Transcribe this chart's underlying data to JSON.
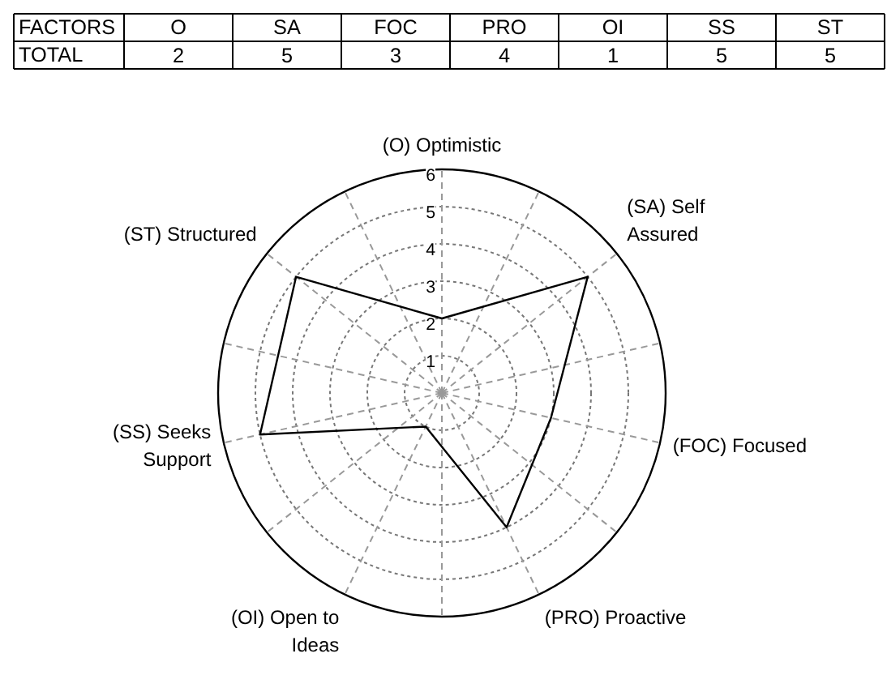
{
  "chart_data": {
    "type": "radar",
    "categories": [
      "(O) Optimistic",
      "(SA) Self\nAssured",
      "(FOC) Focused",
      "(PRO) Proactive",
      "(OI) Open to\nIdeas",
      "(SS) Seeks\nSupport",
      "(ST) Structured"
    ],
    "series": [
      {
        "color": "#000000",
        "values": [
          2,
          5,
          3,
          4,
          1,
          5,
          5
        ]
      }
    ],
    "ylim": [
      0,
      6
    ],
    "yticks": [
      1,
      2,
      3,
      4,
      5,
      6
    ],
    "grid": true,
    "marker": "none",
    "line_style": "solid",
    "annotations": [
      "FACTORS",
      "O",
      "SA",
      "FOC",
      "PRO",
      "OI",
      "SS",
      "ST",
      "TOTAL",
      "2",
      "5",
      "3",
      "4",
      "1",
      "5",
      "5"
    ]
  }
}
